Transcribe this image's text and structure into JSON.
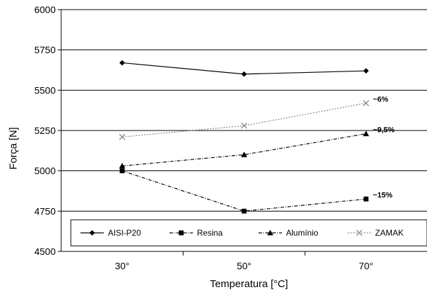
{
  "chart_data": {
    "type": "line",
    "categories": [
      "30°",
      "50°",
      "70°"
    ],
    "xlabel": "Temperatura [°C]",
    "ylabel": "Força [N]",
    "ylim": [
      4500,
      6000
    ],
    "yticks": [
      4500,
      4750,
      5000,
      5250,
      5500,
      5750,
      6000
    ],
    "grid": "horizontal",
    "legend_position": "bottom",
    "series": [
      {
        "name": "AISI-P20",
        "values": [
          5670,
          5600,
          5620
        ],
        "marker": "diamond",
        "dash": "solid",
        "color": "#000000"
      },
      {
        "name": "Resina",
        "values": [
          5000,
          4750,
          4825
        ],
        "marker": "square",
        "dash": "dashdot",
        "color": "#000000"
      },
      {
        "name": "Alumínio",
        "values": [
          5030,
          5100,
          5230
        ],
        "marker": "triangle",
        "dash": "dashdot",
        "color": "#000000"
      },
      {
        "name": "ZAMAK",
        "values": [
          5210,
          5280,
          5420
        ],
        "marker": "x",
        "dash": "dotted",
        "color": "#888888"
      }
    ],
    "annotations": [
      {
        "text": "~6%",
        "series": "ZAMAK"
      },
      {
        "text": "~9,5%",
        "series": "Alumínio"
      },
      {
        "text": "~15%",
        "series": "Resina"
      }
    ]
  }
}
